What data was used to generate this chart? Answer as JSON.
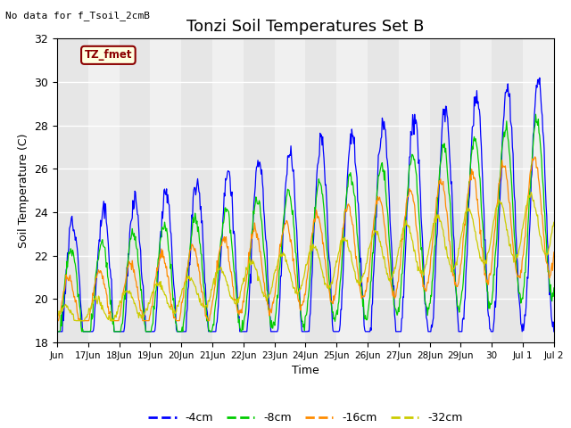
{
  "title": "Tonzi Soil Temperatures Set B",
  "ylabel": "Soil Temperature (C)",
  "xlabel": "Time",
  "annotation_top_left": "No data for f_Tsoil_2cmB",
  "legend_box_label": "TZ_fmet",
  "ylim": [
    18,
    32
  ],
  "yticks": [
    18,
    20,
    22,
    24,
    26,
    28,
    30,
    32
  ],
  "xtick_labels": [
    "Jun",
    "17Jun",
    "18Jun",
    "19Jun",
    "20Jun",
    "21Jun",
    "22Jun",
    "23Jun",
    "24Jun",
    "25Jun",
    "26Jun",
    "27Jun",
    "28Jun",
    "29Jun",
    "30",
    "Jul 1",
    "Jul 2"
  ],
  "xtick_positions": [
    0,
    1,
    2,
    3,
    4,
    5,
    6,
    7,
    8,
    9,
    10,
    11,
    12,
    13,
    14,
    15,
    16
  ],
  "n_days": 16,
  "colors": {
    "4cm": "#0000FF",
    "8cm": "#00CC00",
    "16cm": "#FF8C00",
    "32cm": "#CCCC00"
  },
  "plot_bg_color": "#F0F0F0",
  "legend_colors": [
    "#0000FF",
    "#00CC00",
    "#FF8C00",
    "#CCCC00"
  ],
  "legend_labels": [
    "-4cm",
    "-8cm",
    "-16cm",
    "-32cm"
  ],
  "title_fontsize": 13,
  "label_fontsize": 9
}
